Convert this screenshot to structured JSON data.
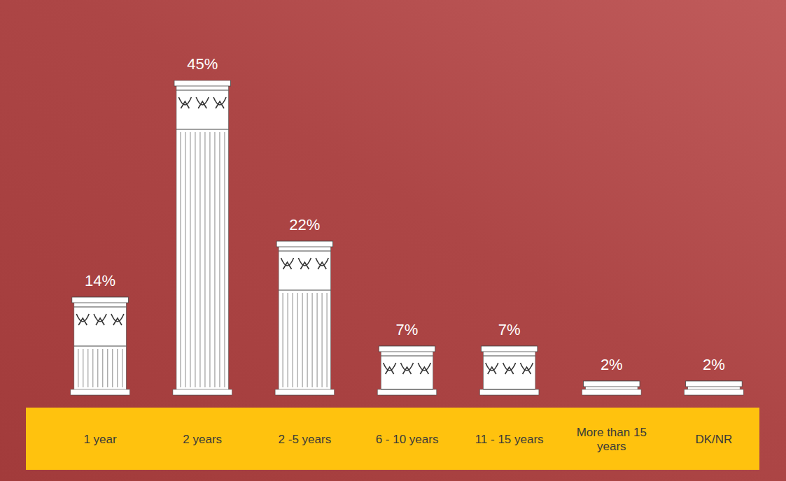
{
  "chart_data": {
    "type": "bar",
    "categories": [
      "1 year",
      "2 years",
      "2 -5 years",
      "6 - 10 years",
      "11 - 15 years",
      "More than 15 years",
      "DK/NR"
    ],
    "values": [
      14,
      45,
      22,
      7,
      7,
      2,
      2
    ],
    "value_labels": [
      "14%",
      "45%",
      "22%",
      "7%",
      "7%",
      "2%",
      "2%"
    ],
    "color": "#ffffff",
    "data_labels": true,
    "tick_labels": "x",
    "grid": false
  }
}
